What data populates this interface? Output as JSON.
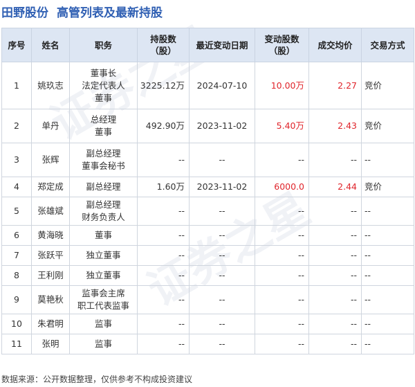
{
  "title": {
    "company": "田野股份",
    "subtitle": "高管列表及最新持股"
  },
  "table": {
    "headers": [
      "序号",
      "姓名",
      "职务",
      "持股数\n（股）",
      "最近变动日期",
      "变动股数\n（股）",
      "成交均价",
      "交易方式"
    ],
    "rows": [
      {
        "no": "1",
        "name": "姚玖志",
        "position": [
          "董事长",
          "法定代表人",
          "董事"
        ],
        "shares": "3225.12万",
        "date": "2024-07-10",
        "change": "10.00万",
        "price": "2.27",
        "method": "竞价"
      },
      {
        "no": "2",
        "name": "单丹",
        "position": [
          "总经理",
          "董事"
        ],
        "shares": "492.90万",
        "date": "2023-11-02",
        "change": "5.40万",
        "price": "2.43",
        "method": "竞价"
      },
      {
        "no": "3",
        "name": "张辉",
        "position": [
          "副总经理",
          "董事会秘书"
        ],
        "shares": "--",
        "date": "--",
        "change": "--",
        "price": "--",
        "method": "--"
      },
      {
        "no": "4",
        "name": "郑定成",
        "position": [
          "副总经理"
        ],
        "shares": "1.60万",
        "date": "2023-11-02",
        "change": "6000.0",
        "price": "2.44",
        "method": "竞价"
      },
      {
        "no": "5",
        "name": "张雄斌",
        "position": [
          "副总经理",
          "财务负责人"
        ],
        "shares": "--",
        "date": "--",
        "change": "--",
        "price": "--",
        "method": "--"
      },
      {
        "no": "6",
        "name": "黄海晓",
        "position": [
          "董事"
        ],
        "shares": "--",
        "date": "--",
        "change": "--",
        "price": "--",
        "method": "--"
      },
      {
        "no": "7",
        "name": "张跃平",
        "position": [
          "独立董事"
        ],
        "shares": "--",
        "date": "--",
        "change": "--",
        "price": "--",
        "method": "--"
      },
      {
        "no": "8",
        "name": "王利刚",
        "position": [
          "独立董事"
        ],
        "shares": "--",
        "date": "--",
        "change": "--",
        "price": "--",
        "method": "--"
      },
      {
        "no": "9",
        "name": "莫艳秋",
        "position": [
          "监事会主席",
          "职工代表监事"
        ],
        "shares": "--",
        "date": "--",
        "change": "--",
        "price": "--",
        "method": "--"
      },
      {
        "no": "10",
        "name": "朱君明",
        "position": [
          "监事"
        ],
        "shares": "--",
        "date": "--",
        "change": "--",
        "price": "--",
        "method": "--"
      },
      {
        "no": "11",
        "name": "张明",
        "position": [
          "监事"
        ],
        "shares": "--",
        "date": "--",
        "change": "--",
        "price": "--",
        "method": "--"
      }
    ]
  },
  "footer": "数据来源：公开数据整理，仅供参考不构成投资建议",
  "watermark": "证券之星",
  "colors": {
    "title": "#2f5fb3",
    "header_bg": "#dde6f3",
    "highlight": "#e0242b"
  }
}
